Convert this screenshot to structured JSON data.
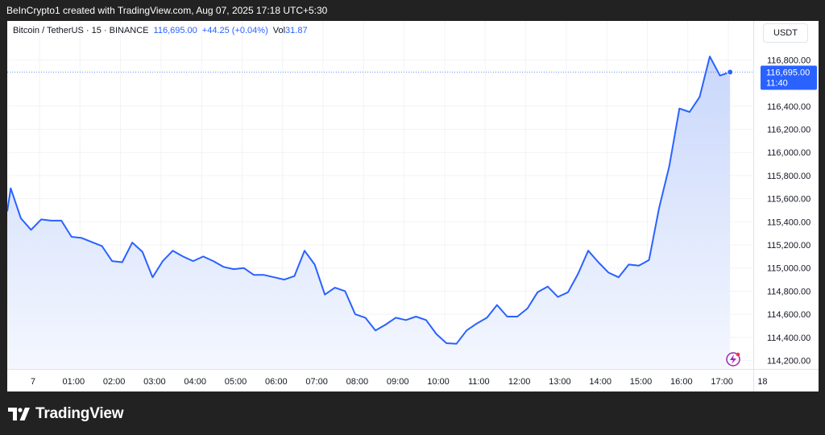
{
  "caption": "BeInCrypto1 created with TradingView.com, Aug 07, 2025 17:18 UTC+5:30",
  "legend": {
    "symbol": "Bitcoin / TetherUS · 15 · BINANCE",
    "price": "116,695.00",
    "change": "+44.25 (+0.04%)",
    "vol_label": "Vol",
    "vol_value": "31.87"
  },
  "currency": "USDT",
  "last_price": {
    "price": "116,695.00",
    "countdown": "11:40"
  },
  "brand": "TradingView",
  "colors": {
    "line": "#2962ff",
    "area_top": "#c9d7fb",
    "area_bottom": "#f4f7fe",
    "background": "#222222"
  },
  "chart_data": {
    "type": "area",
    "x_label_times": [
      "7",
      "01:00",
      "02:00",
      "03:00",
      "04:00",
      "05:00",
      "06:00",
      "07:00",
      "08:00",
      "09:00",
      "10:00",
      "11:00",
      "12:00",
      "13:00",
      "14:00",
      "15:00",
      "16:00",
      "17:00",
      "18"
    ],
    "y_ticks": [
      "114,200.00",
      "114,400.00",
      "114,600.00",
      "114,800.00",
      "115,000.00",
      "115,200.00",
      "115,400.00",
      "115,600.00",
      "115,800.00",
      "116,000.00",
      "116,200.00",
      "116,400.00",
      "116,800.00"
    ],
    "y_tick_values": [
      114200,
      114400,
      114600,
      114800,
      115000,
      115200,
      115400,
      115600,
      115800,
      116000,
      116200,
      116400,
      116800
    ],
    "ylim": [
      114100,
      116900
    ],
    "x_start_hours": -0.8,
    "step_hours": 0.25,
    "values": [
      115490,
      115690,
      115430,
      115330,
      115420,
      115410,
      115410,
      115270,
      115260,
      115225,
      115190,
      115060,
      115050,
      115220,
      115140,
      114920,
      115060,
      115150,
      115100,
      115060,
      115100,
      115060,
      115010,
      114990,
      115000,
      114940,
      114940,
      114920,
      114900,
      114930,
      115150,
      115030,
      114770,
      114830,
      114800,
      114600,
      114570,
      114460,
      114510,
      114570,
      114550,
      114580,
      114550,
      114430,
      114350,
      114345,
      114460,
      114520,
      114570,
      114680,
      114580,
      114580,
      114650,
      114790,
      114840,
      114750,
      114790,
      114950,
      115150,
      115050,
      114960,
      114920,
      115030,
      115020,
      115070,
      115520,
      115880,
      116380,
      116350,
      116480,
      116830,
      116665,
      116695
    ],
    "last_value": 116695
  }
}
